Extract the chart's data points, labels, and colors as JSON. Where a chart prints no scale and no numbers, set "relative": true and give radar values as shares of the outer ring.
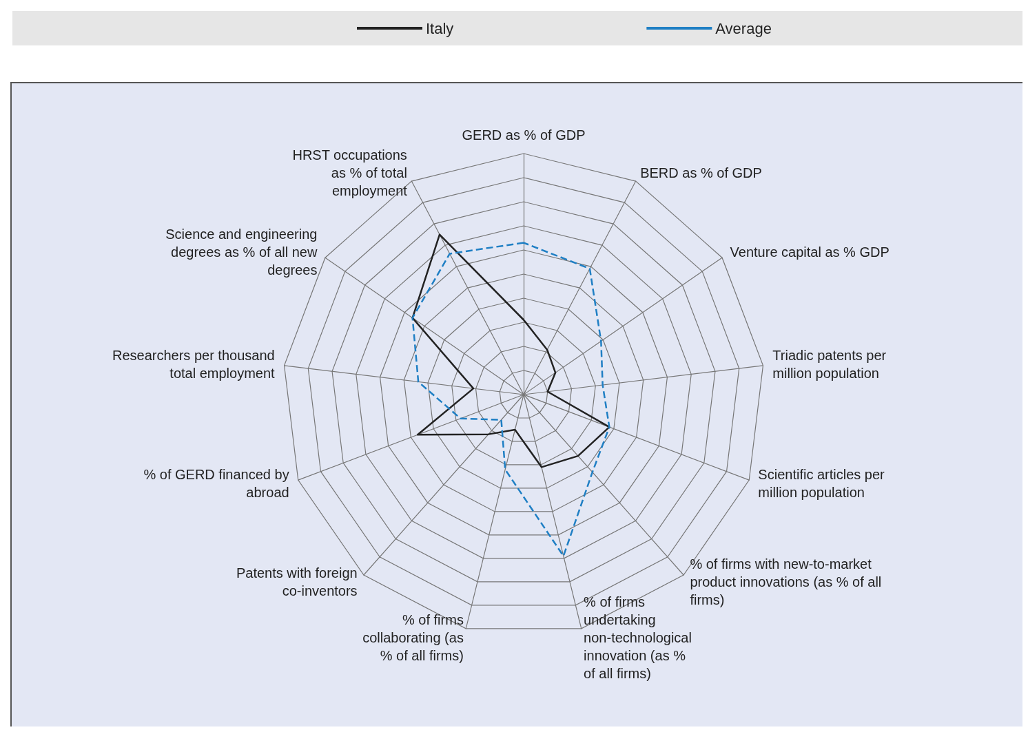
{
  "chart_data": {
    "type": "radar",
    "relative": true,
    "legend": "top",
    "grid": true,
    "categories": [
      "GERD as % of GDP",
      "BERD as % of GDP",
      "Venture capital as % GDP",
      "Triadic patents per million population",
      "Scientific articles per million population",
      "% of firms with new-to-market product innovations (as % of all firms)",
      "% of firms undertaking non-technological innovation (as % of all firms)",
      "% of firms collaborating (as % of all firms)",
      "Patents with foreign co-inventors",
      "% of GERD financed by abroad",
      "Researchers per thousand total employment",
      "Science and engineering degrees as % of all new degrees",
      "HRST occupations as % of total employment"
    ],
    "series": [
      {
        "name": "Italy",
        "color": "#222222",
        "line_style": "solid",
        "values": [
          0.31,
          0.21,
          0.16,
          0.1,
          0.38,
          0.34,
          0.31,
          0.15,
          0.22,
          0.47,
          0.21,
          0.56,
          0.75
        ]
      },
      {
        "name": "Average",
        "color": "#1f7fc4",
        "line_style": "dashed",
        "values": [
          0.63,
          0.59,
          0.39,
          0.33,
          0.38,
          0.43,
          0.69,
          0.32,
          0.14,
          0.28,
          0.44,
          0.56,
          0.66
        ]
      }
    ]
  }
}
